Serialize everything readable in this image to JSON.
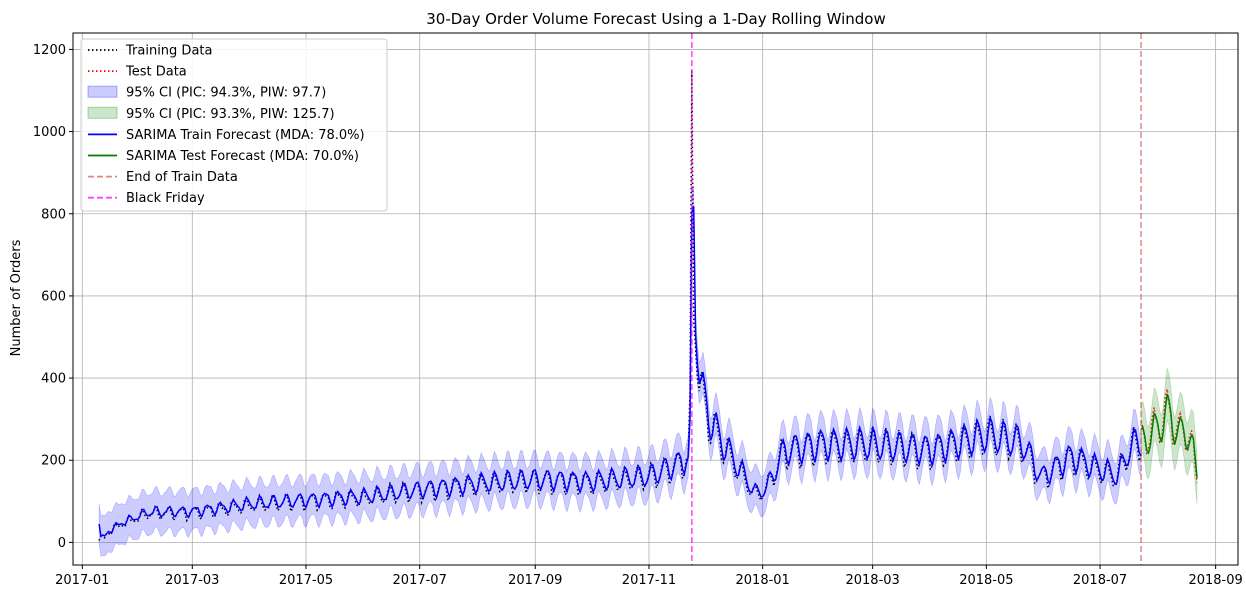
{
  "chart_data": {
    "type": "line",
    "title": "30-Day Order Volume Forecast Using a 1-Day Rolling Window",
    "xlabel": "",
    "ylabel": "Number of Orders",
    "x_range": [
      "2016-12-27",
      "2018-09-13"
    ],
    "ylim": [
      -55,
      1240
    ],
    "grid": true,
    "legend_position": "upper-left",
    "x_ticks": [
      "2017-01",
      "2017-03",
      "2017-05",
      "2017-07",
      "2017-09",
      "2017-11",
      "2018-01",
      "2018-03",
      "2018-05",
      "2018-07",
      "2018-09"
    ],
    "y_ticks": [
      0,
      200,
      400,
      600,
      800,
      1000,
      1200
    ],
    "colors": {
      "training": "#000000",
      "test": "#ff0000",
      "train_ci": "#0000ff",
      "test_ci": "#008000",
      "train_forecast": "#0000ff",
      "test_forecast": "#008000",
      "end_of_train": "#cd5c5c",
      "black_friday": "#ff00ff"
    },
    "legend": [
      {
        "key": "training",
        "label": "Training Data",
        "style": "dotted-line"
      },
      {
        "key": "test",
        "label": "Test Data",
        "style": "dotted-line"
      },
      {
        "key": "train_ci",
        "label": "95% CI (PIC: 94.3%, PIW: 97.7)",
        "style": "patch"
      },
      {
        "key": "test_ci",
        "label": "95% CI (PIC: 93.3%, PIW: 125.7)",
        "style": "patch"
      },
      {
        "key": "train_forecast",
        "label": "SARIMA Train Forecast (MDA: 78.0%)",
        "style": "solid-line"
      },
      {
        "key": "test_forecast",
        "label": "SARIMA Test Forecast (MDA: 70.0%)",
        "style": "solid-line"
      },
      {
        "key": "end_of_train",
        "label": "End of Train Data",
        "style": "dashed-line"
      },
      {
        "key": "black_friday",
        "label": "Black Friday",
        "style": "dashed-line"
      }
    ],
    "vertical_lines": [
      {
        "key": "black_friday",
        "date": "2017-11-24"
      },
      {
        "key": "end_of_train",
        "date": "2018-07-23"
      }
    ],
    "training_anchors": [
      [
        "2017-01-10",
        5
      ],
      [
        "2017-01-20",
        40
      ],
      [
        "2017-02-05",
        70
      ],
      [
        "2017-03-01",
        72
      ],
      [
        "2017-04-01",
        90
      ],
      [
        "2017-05-01",
        100
      ],
      [
        "2017-06-01",
        108
      ],
      [
        "2017-07-01",
        125
      ],
      [
        "2017-08-01",
        140
      ],
      [
        "2017-09-01",
        150
      ],
      [
        "2017-10-01",
        145
      ],
      [
        "2017-11-01",
        158
      ],
      [
        "2017-11-15",
        185
      ],
      [
        "2017-11-22",
        205
      ],
      [
        "2017-11-23",
        370
      ],
      [
        "2017-11-24",
        1150
      ],
      [
        "2017-11-25",
        540
      ],
      [
        "2017-11-27",
        400
      ],
      [
        "2017-12-03",
        300
      ],
      [
        "2017-12-10",
        240
      ],
      [
        "2017-12-20",
        170
      ],
      [
        "2017-12-28",
        115
      ],
      [
        "2018-01-03",
        130
      ],
      [
        "2018-01-12",
        220
      ],
      [
        "2018-02-01",
        235
      ],
      [
        "2018-03-01",
        235
      ],
      [
        "2018-04-01",
        222
      ],
      [
        "2018-05-01",
        258
      ],
      [
        "2018-05-20",
        240
      ],
      [
        "2018-05-30",
        155
      ],
      [
        "2018-06-15",
        205
      ],
      [
        "2018-07-01",
        175
      ],
      [
        "2018-07-10",
        158
      ],
      [
        "2018-07-17",
        230
      ],
      [
        "2018-07-23",
        245
      ]
    ],
    "test_anchors": [
      [
        "2018-07-23",
        250
      ],
      [
        "2018-07-30",
        275
      ],
      [
        "2018-08-06",
        320
      ],
      [
        "2018-08-13",
        265
      ],
      [
        "2018-08-18",
        275
      ],
      [
        "2018-08-22",
        145
      ]
    ]
  }
}
